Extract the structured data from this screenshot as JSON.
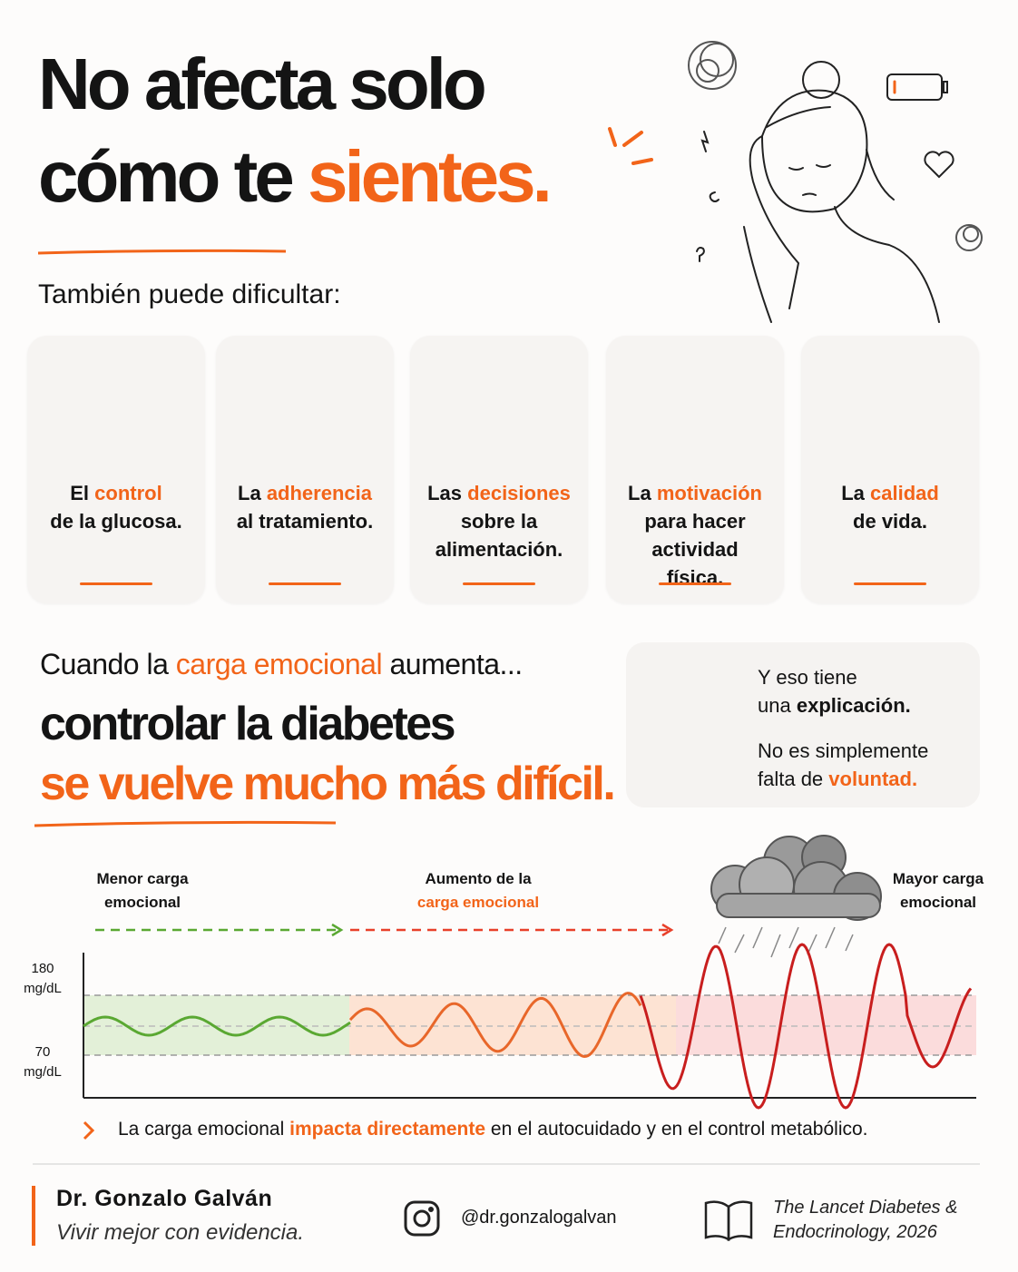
{
  "title": {
    "line1": "No afecta solo",
    "line2_before": "cómo te",
    "line2_highlight": "sientes."
  },
  "subtitle": "También puede dificultar:",
  "cards": [
    {
      "before": "El",
      "highlight": "control",
      "after": "de la glucosa."
    },
    {
      "before": "La",
      "highlight": "adherencia",
      "after": "al tratamiento."
    },
    {
      "before": "Las",
      "highlight": "decisiones",
      "after": "sobre la alimentación."
    },
    {
      "before": "La",
      "highlight": "motivación",
      "after": "para hacer actividad física."
    },
    {
      "before": "La",
      "highlight": "calidad",
      "after": "de vida."
    }
  ],
  "emotional": {
    "intro_before": "Cuando la",
    "intro_highlight": "carga emocional",
    "intro_after": "aumenta...",
    "line1": "controlar la diabetes",
    "line2": "se vuelve mucho más difícil."
  },
  "explanation": {
    "line1": "Y eso tiene",
    "line2_before": "una",
    "line2_highlight": "explicación.",
    "line3": "No es simplemente",
    "line4_before": "falta de",
    "line4_highlight": "voluntad."
  },
  "chart": {
    "stage_low": "Menor carga emocional",
    "stage_mid_before": "Aumento de la",
    "stage_mid_highlight": "carga emocional",
    "stage_high": "Mayor carga emocional",
    "upper_value": "180",
    "upper_unit": "mg/dL",
    "lower_value": "70",
    "lower_unit": "mg/dL"
  },
  "note": {
    "before": "La carga emocional",
    "highlight": "impacta directamente",
    "after": "en el autocuidado y en el control metabólico."
  },
  "footer": {
    "author": "Dr. Gonzalo Galván",
    "tagline": "Vivir mejor con evidencia.",
    "social": "@dr.gonzalogalvan",
    "source": "The Lancet Diabetes & Endocrinology, 2026"
  }
}
